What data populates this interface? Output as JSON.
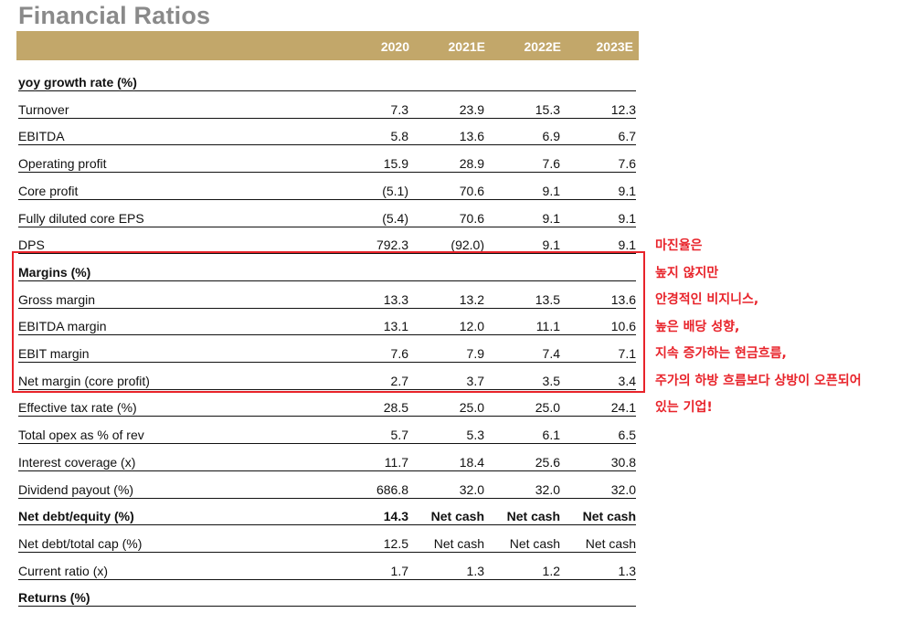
{
  "title": "Financial Ratios",
  "columns": [
    "2020",
    "2021E",
    "2022E",
    "2023E"
  ],
  "rows": [
    {
      "label": "yoy growth rate (%)",
      "bold": true,
      "section": true,
      "values": []
    },
    {
      "label": "Turnover",
      "values": [
        "7.3",
        "23.9",
        "15.3",
        "12.3"
      ]
    },
    {
      "label": "EBITDA",
      "values": [
        "5.8",
        "13.6",
        "6.9",
        "6.7"
      ]
    },
    {
      "label": "Operating profit",
      "values": [
        "15.9",
        "28.9",
        "7.6",
        "7.6"
      ]
    },
    {
      "label": "Core profit",
      "values": [
        "(5.1)",
        "70.6",
        "9.1",
        "9.1"
      ]
    },
    {
      "label": "Fully diluted core EPS",
      "values": [
        "(5.4)",
        "70.6",
        "9.1",
        "9.1"
      ]
    },
    {
      "label": "DPS",
      "values": [
        "792.3",
        "(92.0)",
        "9.1",
        "9.1"
      ]
    },
    {
      "label": "Margins (%)",
      "bold": true,
      "section": true,
      "values": []
    },
    {
      "label": "Gross margin",
      "values": [
        "13.3",
        "13.2",
        "13.5",
        "13.6"
      ]
    },
    {
      "label": "EBITDA margin",
      "values": [
        "13.1",
        "12.0",
        "11.1",
        "10.6"
      ]
    },
    {
      "label": "EBIT margin",
      "values": [
        "7.6",
        "7.9",
        "7.4",
        "7.1"
      ]
    },
    {
      "label": "Net margin (core profit)",
      "values": [
        "2.7",
        "3.7",
        "3.5",
        "3.4"
      ]
    },
    {
      "label": "Effective tax rate (%)",
      "values": [
        "28.5",
        "25.0",
        "25.0",
        "24.1"
      ]
    },
    {
      "label": "Total opex as % of rev",
      "values": [
        "5.7",
        "5.3",
        "6.1",
        "6.5"
      ]
    },
    {
      "label": "Interest coverage (x)",
      "values": [
        "11.7",
        "18.4",
        "25.6",
        "30.8"
      ]
    },
    {
      "label": "Dividend payout (%)",
      "values": [
        "686.8",
        "32.0",
        "32.0",
        "32.0"
      ]
    },
    {
      "label": "Net debt/equity (%)",
      "bold": true,
      "values": [
        "14.3",
        "Net cash",
        "Net cash",
        "Net cash"
      ]
    },
    {
      "label": "Net debt/total cap (%)",
      "values": [
        "12.5",
        "Net cash",
        "Net cash",
        "Net cash"
      ]
    },
    {
      "label": "Current ratio (x)",
      "values": [
        "1.7",
        "1.3",
        "1.2",
        "1.3"
      ]
    },
    {
      "label": "Returns (%)",
      "bold": true,
      "section": true,
      "values": []
    }
  ],
  "annotation": {
    "lines": [
      "마진율은",
      "높지 않지만",
      "안경적인 비지니스,",
      "높은 배당 성향,",
      "지속 증가하는 현금흐름,",
      "주가의 하방 흐름보다 상방이 오픈되어",
      "있는 기업!"
    ],
    "color": "#e8232a"
  },
  "colors": {
    "header_bg": "#c2a76a",
    "title": "#8a8a8a",
    "highlight_box": "#e8232a"
  }
}
